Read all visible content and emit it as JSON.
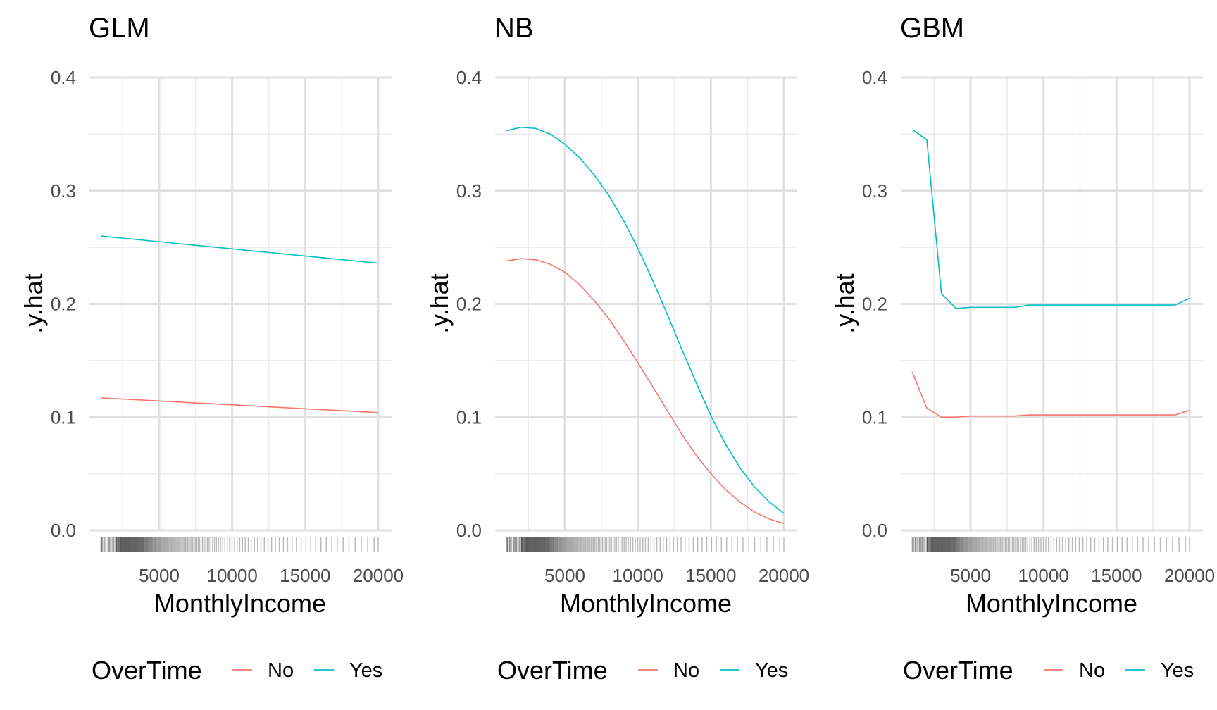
{
  "chart_data": [
    {
      "type": "line",
      "title": "GLM",
      "xlabel": "MonthlyIncome",
      "ylabel": ".y.hat",
      "xlim": [
        800,
        20700
      ],
      "ylim": [
        0,
        0.4
      ],
      "xticks": [
        5000,
        10000,
        15000,
        20000
      ],
      "yticks": [
        0.0,
        0.1,
        0.2,
        0.3,
        0.4
      ],
      "xtick_labels": [
        "5000",
        "10000",
        "15000",
        "20000"
      ],
      "ytick_labels": [
        "0.0",
        "0.1",
        "0.2",
        "0.3",
        "0.4"
      ],
      "grid": true,
      "legend": {
        "title": "OverTime",
        "position": "bottom",
        "entries": [
          "No",
          "Yes"
        ]
      },
      "series": [
        {
          "name": "No",
          "color": "#F8766D",
          "x": [
            1009,
            20000
          ],
          "y": [
            0.117,
            0.104
          ]
        },
        {
          "name": "Yes",
          "color": "#00BFC4",
          "x": [
            1009,
            20000
          ],
          "y": [
            0.26,
            0.236
          ]
        }
      ],
      "rug": [
        1009,
        1052,
        1081,
        1102,
        1200,
        1223,
        1281,
        1359,
        1483,
        1514,
        1569,
        1601,
        1675,
        1702,
        1790,
        1861,
        1904,
        2008,
        2028,
        2044,
        2062,
        2086,
        2102,
        2132,
        2176,
        2201,
        2220,
        2251,
        2280,
        2305,
        2324,
        2348,
        2372,
        2389,
        2406,
        2430,
        2451,
        2478,
        2500,
        2520,
        2545,
        2564,
        2585,
        2610,
        2632,
        2655,
        2679,
        2700,
        2723,
        2742,
        2766,
        2789,
        2810,
        2835,
        2856,
        2880,
        2900,
        2922,
        2945,
        2968,
        2990,
        3010,
        3035,
        3058,
        3080,
        3102,
        3125,
        3148,
        3170,
        3195,
        3215,
        3240,
        3262,
        3285,
        3310,
        3330,
        3355,
        3378,
        3400,
        3422,
        3445,
        3468,
        3490,
        3515,
        3540,
        3562,
        3585,
        3610,
        3632,
        3655,
        3680,
        3705,
        3730,
        3755,
        3780,
        3805,
        3830,
        3855,
        3880,
        3905,
        3930,
        3955,
        3980,
        4010,
        4040,
        4070,
        4100,
        4130,
        4160,
        4190,
        4220,
        4250,
        4285,
        4320,
        4355,
        4390,
        4425,
        4460,
        4495,
        4530,
        4570,
        4610,
        4650,
        4690,
        4730,
        4770,
        4810,
        4850,
        4895,
        4940,
        4985,
        5030,
        5075,
        5120,
        5170,
        5220,
        5270,
        5320,
        5370,
        5420,
        5475,
        5530,
        5585,
        5640,
        5700,
        5760,
        5820,
        5880,
        5945,
        6010,
        6075,
        6140,
        6210,
        6280,
        6350,
        6420,
        6495,
        6570,
        6645,
        6720,
        6800,
        6880,
        6960,
        7040,
        7125,
        7210,
        7300,
        7390,
        7480,
        7575,
        7670,
        7770,
        7870,
        7975,
        8080,
        8190,
        8300,
        8420,
        8540,
        8660,
        8790,
        8920,
        9060,
        9200,
        9350,
        9500,
        9660,
        9820,
        9990,
        10160,
        10340,
        10520,
        10710,
        10900,
        11100,
        11300,
        11520,
        11740,
        11970,
        12200,
        12450,
        12700,
        12960,
        13230,
        13510,
        13800,
        14100,
        14400,
        14720,
        15050,
        15380,
        15720,
        16080,
        16440,
        16820,
        17200,
        17600,
        18000,
        18420,
        18840,
        19280,
        19720,
        19999
      ]
    },
    {
      "type": "line",
      "title": "NB",
      "xlabel": "MonthlyIncome",
      "ylabel": ".y.hat",
      "xlim": [
        800,
        20700
      ],
      "ylim": [
        0,
        0.4
      ],
      "xticks": [
        5000,
        10000,
        15000,
        20000
      ],
      "yticks": [
        0.0,
        0.1,
        0.2,
        0.3,
        0.4
      ],
      "xtick_labels": [
        "5000",
        "10000",
        "15000",
        "20000"
      ],
      "ytick_labels": [
        "0.0",
        "0.1",
        "0.2",
        "0.3",
        "0.4"
      ],
      "grid": true,
      "legend": {
        "title": "OverTime",
        "position": "bottom",
        "entries": [
          "No",
          "Yes"
        ]
      },
      "series": [
        {
          "name": "No",
          "color": "#F8766D",
          "x": [
            1009,
            2009,
            3009,
            4009,
            5009,
            6009,
            7009,
            8009,
            9009,
            10009,
            11009,
            12009,
            13009,
            14009,
            15009,
            16009,
            17009,
            18009,
            19009,
            20000
          ],
          "y": [
            0.238,
            0.24,
            0.239,
            0.235,
            0.228,
            0.217,
            0.203,
            0.187,
            0.168,
            0.148,
            0.127,
            0.106,
            0.085,
            0.066,
            0.05,
            0.036,
            0.025,
            0.016,
            0.01,
            0.006
          ]
        },
        {
          "name": "Yes",
          "color": "#00BFC4",
          "x": [
            1009,
            2009,
            3009,
            4009,
            5009,
            6009,
            7009,
            8009,
            9009,
            10009,
            11009,
            12009,
            13009,
            14009,
            15009,
            16009,
            17009,
            18009,
            19009,
            20000
          ],
          "y": [
            0.353,
            0.356,
            0.355,
            0.35,
            0.341,
            0.329,
            0.314,
            0.296,
            0.274,
            0.249,
            0.221,
            0.191,
            0.16,
            0.13,
            0.101,
            0.076,
            0.055,
            0.038,
            0.025,
            0.015
          ]
        }
      ],
      "rug": [
        1009,
        1052,
        1081,
        1102,
        1200,
        1223,
        1281,
        1359,
        1483,
        1514,
        1569,
        1601,
        1675,
        1702,
        1790,
        1861,
        1904,
        2008,
        2028,
        2044,
        2062,
        2086,
        2102,
        2132,
        2176,
        2201,
        2220,
        2251,
        2280,
        2305,
        2324,
        2348,
        2372,
        2389,
        2406,
        2430,
        2451,
        2478,
        2500,
        2520,
        2545,
        2564,
        2585,
        2610,
        2632,
        2655,
        2679,
        2700,
        2723,
        2742,
        2766,
        2789,
        2810,
        2835,
        2856,
        2880,
        2900,
        2922,
        2945,
        2968,
        2990,
        3010,
        3035,
        3058,
        3080,
        3102,
        3125,
        3148,
        3170,
        3195,
        3215,
        3240,
        3262,
        3285,
        3310,
        3330,
        3355,
        3378,
        3400,
        3422,
        3445,
        3468,
        3490,
        3515,
        3540,
        3562,
        3585,
        3610,
        3632,
        3655,
        3680,
        3705,
        3730,
        3755,
        3780,
        3805,
        3830,
        3855,
        3880,
        3905,
        3930,
        3955,
        3980,
        4010,
        4040,
        4070,
        4100,
        4130,
        4160,
        4190,
        4220,
        4250,
        4285,
        4320,
        4355,
        4390,
        4425,
        4460,
        4495,
        4530,
        4570,
        4610,
        4650,
        4690,
        4730,
        4770,
        4810,
        4850,
        4895,
        4940,
        4985,
        5030,
        5075,
        5120,
        5170,
        5220,
        5270,
        5320,
        5370,
        5420,
        5475,
        5530,
        5585,
        5640,
        5700,
        5760,
        5820,
        5880,
        5945,
        6010,
        6075,
        6140,
        6210,
        6280,
        6350,
        6420,
        6495,
        6570,
        6645,
        6720,
        6800,
        6880,
        6960,
        7040,
        7125,
        7210,
        7300,
        7390,
        7480,
        7575,
        7670,
        7770,
        7870,
        7975,
        8080,
        8190,
        8300,
        8420,
        8540,
        8660,
        8790,
        8920,
        9060,
        9200,
        9350,
        9500,
        9660,
        9820,
        9990,
        10160,
        10340,
        10520,
        10710,
        10900,
        11100,
        11300,
        11520,
        11740,
        11970,
        12200,
        12450,
        12700,
        12960,
        13230,
        13510,
        13800,
        14100,
        14400,
        14720,
        15050,
        15380,
        15720,
        16080,
        16440,
        16820,
        17200,
        17600,
        18000,
        18420,
        18840,
        19280,
        19720,
        19999
      ]
    },
    {
      "type": "line",
      "title": "GBM",
      "xlabel": "MonthlyIncome",
      "ylabel": ".y.hat",
      "xlim": [
        800,
        20700
      ],
      "ylim": [
        0,
        0.4
      ],
      "xticks": [
        5000,
        10000,
        15000,
        20000
      ],
      "yticks": [
        0.0,
        0.1,
        0.2,
        0.3,
        0.4
      ],
      "xtick_labels": [
        "5000",
        "10000",
        "15000",
        "20000"
      ],
      "ytick_labels": [
        "0.0",
        "0.1",
        "0.2",
        "0.3",
        "0.4"
      ],
      "grid": true,
      "legend": {
        "title": "OverTime",
        "position": "bottom",
        "entries": [
          "No",
          "Yes"
        ]
      },
      "series": [
        {
          "name": "No",
          "color": "#F8766D",
          "x": [
            1009,
            2009,
            3009,
            4009,
            5009,
            6009,
            7009,
            8009,
            9009,
            10009,
            11009,
            12009,
            13009,
            14009,
            15009,
            16009,
            17009,
            18009,
            19009,
            20000
          ],
          "y": [
            0.14,
            0.108,
            0.1,
            0.1,
            0.101,
            0.101,
            0.101,
            0.101,
            0.102,
            0.102,
            0.102,
            0.102,
            0.102,
            0.102,
            0.102,
            0.102,
            0.102,
            0.102,
            0.102,
            0.106
          ]
        },
        {
          "name": "Yes",
          "color": "#00BFC4",
          "x": [
            1009,
            2009,
            3009,
            4009,
            5009,
            6009,
            7009,
            8009,
            9009,
            10009,
            11009,
            12009,
            13009,
            14009,
            15009,
            16009,
            17009,
            18009,
            19009,
            20000
          ],
          "y": [
            0.354,
            0.345,
            0.209,
            0.196,
            0.197,
            0.197,
            0.197,
            0.197,
            0.199,
            0.199,
            0.199,
            0.199,
            0.199,
            0.199,
            0.199,
            0.199,
            0.199,
            0.199,
            0.199,
            0.205
          ]
        }
      ],
      "rug": [
        1009,
        1052,
        1081,
        1102,
        1200,
        1223,
        1281,
        1359,
        1483,
        1514,
        1569,
        1601,
        1675,
        1702,
        1790,
        1861,
        1904,
        2008,
        2028,
        2044,
        2062,
        2086,
        2102,
        2132,
        2176,
        2201,
        2220,
        2251,
        2280,
        2305,
        2324,
        2348,
        2372,
        2389,
        2406,
        2430,
        2451,
        2478,
        2500,
        2520,
        2545,
        2564,
        2585,
        2610,
        2632,
        2655,
        2679,
        2700,
        2723,
        2742,
        2766,
        2789,
        2810,
        2835,
        2856,
        2880,
        2900,
        2922,
        2945,
        2968,
        2990,
        3010,
        3035,
        3058,
        3080,
        3102,
        3125,
        3148,
        3170,
        3195,
        3215,
        3240,
        3262,
        3285,
        3310,
        3330,
        3355,
        3378,
        3400,
        3422,
        3445,
        3468,
        3490,
        3515,
        3540,
        3562,
        3585,
        3610,
        3632,
        3655,
        3680,
        3705,
        3730,
        3755,
        3780,
        3805,
        3830,
        3855,
        3880,
        3905,
        3930,
        3955,
        3980,
        4010,
        4040,
        4070,
        4100,
        4130,
        4160,
        4190,
        4220,
        4250,
        4285,
        4320,
        4355,
        4390,
        4425,
        4460,
        4495,
        4530,
        4570,
        4610,
        4650,
        4690,
        4730,
        4770,
        4810,
        4850,
        4895,
        4940,
        4985,
        5030,
        5075,
        5120,
        5170,
        5220,
        5270,
        5320,
        5370,
        5420,
        5475,
        5530,
        5585,
        5640,
        5700,
        5760,
        5820,
        5880,
        5945,
        6010,
        6075,
        6140,
        6210,
        6280,
        6350,
        6420,
        6495,
        6570,
        6645,
        6720,
        6800,
        6880,
        6960,
        7040,
        7125,
        7210,
        7300,
        7390,
        7480,
        7575,
        7670,
        7770,
        7870,
        7975,
        8080,
        8190,
        8300,
        8420,
        8540,
        8660,
        8790,
        8920,
        9060,
        9200,
        9350,
        9500,
        9660,
        9820,
        9990,
        10160,
        10340,
        10520,
        10710,
        10900,
        11100,
        11300,
        11520,
        11740,
        11970,
        12200,
        12450,
        12700,
        12960,
        13230,
        13510,
        13800,
        14100,
        14400,
        14720,
        15050,
        15380,
        15720,
        16080,
        16440,
        16820,
        17200,
        17600,
        18000,
        18420,
        18840,
        19280,
        19720,
        19999
      ]
    }
  ]
}
